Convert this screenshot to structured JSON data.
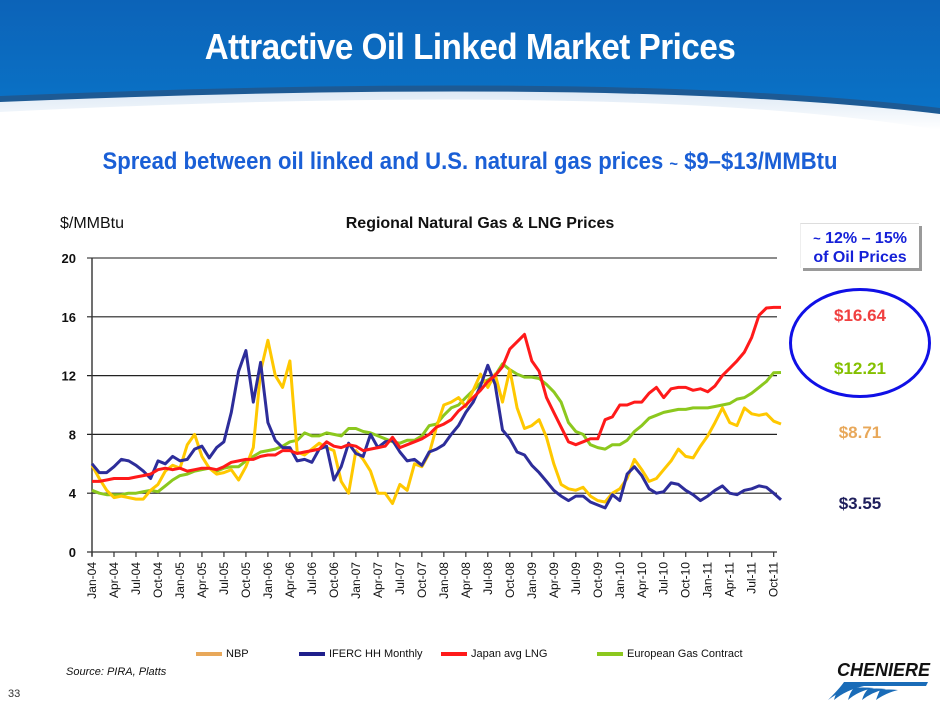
{
  "header": {
    "title": "Attractive Oil Linked Market Prices",
    "subtitle_main": "Spread between oil linked and U.S. natural gas prices ",
    "subtitle_tilde": "~",
    "subtitle_range": " $9–$13/MMBtu"
  },
  "callout": {
    "tilde": "~",
    "line1": " 12% – 15%",
    "line2": "of Oil Prices"
  },
  "end_values": {
    "japan": "$16.64",
    "european": "$12.21",
    "nbp": "$8.71",
    "henry_hub": "$3.55"
  },
  "footer": {
    "source": "Source: PIRA, Platts",
    "page_number": "33",
    "logo_text": "CHENIERE"
  },
  "colors": {
    "banner": "#0a6fc2",
    "nbp": "#e8a85a",
    "nbp_line": "#ffc800",
    "henry_hub": "#1f1f8c",
    "henry_hub_line": "#2d2d9a",
    "japan": "#ff1a1a",
    "japan_label": "#f04040",
    "european": "#8cc81e",
    "european_label": "#84c000",
    "ellipse": "#1010e6",
    "callout_text": "#1520d8",
    "subtitle": "#1a5fd6"
  },
  "chart_data": {
    "type": "line",
    "title": "Regional Natural Gas & LNG Prices",
    "ylabel": "$/MMBtu",
    "xlabel": "",
    "ylim": [
      0,
      20
    ],
    "yticks": [
      "0",
      "4",
      "8",
      "12",
      "16",
      "20"
    ],
    "ytick_values": [
      0,
      4,
      8,
      12,
      16,
      20
    ],
    "grid": true,
    "legend_position": "bottom",
    "x_start": "Jan-04",
    "x_step": "monthly",
    "xtick_labels": [
      "Jan-04",
      "Apr-04",
      "Jul-04",
      "Oct-04",
      "Jan-05",
      "Apr-05",
      "Jul-05",
      "Oct-05",
      "Jan-06",
      "Apr-06",
      "Jul-06",
      "Oct-06",
      "Jan-07",
      "Apr-07",
      "Jul-07",
      "Oct-07",
      "Jan-08",
      "Apr-08",
      "Jul-08",
      "Oct-08",
      "Jan-09",
      "Apr-09",
      "Jul-09",
      "Oct-09",
      "Jan-10",
      "Apr-10",
      "Jul-10",
      "Oct-10",
      "Jan-11",
      "Apr-11",
      "Jul-11",
      "Oct-11"
    ],
    "series": [
      {
        "name": "NBP",
        "values": [
          5.9,
          5.0,
          4.2,
          3.7,
          3.8,
          3.7,
          3.6,
          3.6,
          4.2,
          4.6,
          5.5,
          5.9,
          5.7,
          7.3,
          8.0,
          6.5,
          5.7,
          5.3,
          5.4,
          5.6,
          4.9,
          5.8,
          7.1,
          12.3,
          14.4,
          12.0,
          11.2,
          13.0,
          6.8,
          6.6,
          7.0,
          7.4,
          7.1,
          6.9,
          4.8,
          4.0,
          6.9,
          6.3,
          5.5,
          4.0,
          4.0,
          3.3,
          4.6,
          4.2,
          6.0,
          5.8,
          6.7,
          8.5,
          10.0,
          10.2,
          10.5,
          9.9,
          11.0,
          12.1,
          11.2,
          12.1,
          10.2,
          12.4,
          9.8,
          8.4,
          8.6,
          9.0,
          7.8,
          6.0,
          4.6,
          4.3,
          4.2,
          4.4,
          3.8,
          3.5,
          3.4,
          4.0,
          4.3,
          5.0,
          6.3,
          5.6,
          4.8,
          5.0,
          5.6,
          6.2,
          7.0,
          6.5,
          6.4,
          7.2,
          7.9,
          8.8,
          9.8,
          8.8,
          8.6,
          9.8,
          9.4,
          9.3,
          9.4,
          8.9,
          8.71
        ]
      },
      {
        "name": "IFERC HH Monthly",
        "values": [
          6.0,
          5.4,
          5.4,
          5.8,
          6.3,
          6.2,
          5.9,
          5.5,
          5.0,
          6.2,
          6.0,
          6.5,
          6.2,
          6.3,
          7.0,
          7.2,
          6.4,
          7.1,
          7.5,
          9.5,
          12.3,
          13.7,
          10.2,
          12.9,
          8.8,
          7.6,
          7.1,
          7.1,
          6.2,
          6.3,
          6.1,
          7.0,
          7.2,
          4.9,
          5.8,
          7.4,
          6.7,
          6.5,
          8.0,
          7.1,
          7.5,
          7.6,
          6.8,
          6.2,
          6.3,
          5.9,
          6.8,
          7.0,
          7.3,
          8.0,
          8.6,
          9.5,
          10.2,
          11.3,
          12.7,
          11.4,
          8.3,
          7.7,
          6.8,
          6.6,
          5.9,
          5.4,
          4.8,
          4.2,
          3.8,
          3.5,
          3.8,
          3.8,
          3.4,
          3.2,
          3.0,
          3.9,
          3.5,
          5.3,
          5.8,
          5.2,
          4.3,
          4.0,
          4.1,
          4.7,
          4.6,
          4.2,
          3.9,
          3.5,
          3.8,
          4.2,
          4.5,
          4.0,
          3.9,
          4.2,
          4.3,
          4.5,
          4.4,
          4.0,
          3.55
        ]
      },
      {
        "name": "Japan avg LNG",
        "values": [
          4.8,
          4.8,
          4.9,
          5.0,
          5.0,
          5.0,
          5.1,
          5.2,
          5.3,
          5.6,
          5.7,
          5.6,
          5.7,
          5.5,
          5.6,
          5.7,
          5.7,
          5.6,
          5.8,
          6.1,
          6.2,
          6.3,
          6.3,
          6.5,
          6.6,
          6.6,
          6.9,
          6.9,
          6.7,
          6.8,
          6.9,
          7.0,
          7.5,
          7.2,
          7.1,
          7.3,
          7.2,
          6.9,
          7.0,
          7.1,
          7.2,
          7.8,
          7.1,
          7.3,
          7.5,
          7.7,
          8.0,
          8.5,
          8.7,
          9.0,
          9.6,
          10.0,
          10.5,
          11.0,
          11.6,
          12.0,
          12.6,
          13.8,
          14.3,
          14.8,
          13.0,
          12.3,
          10.5,
          9.5,
          8.5,
          7.5,
          7.3,
          7.5,
          7.7,
          7.7,
          9.0,
          9.2,
          10.0,
          10.0,
          10.2,
          10.2,
          10.8,
          11.2,
          10.5,
          11.1,
          11.2,
          11.2,
          11.0,
          11.1,
          10.9,
          11.3,
          12.0,
          12.5,
          13.0,
          13.6,
          14.6,
          16.1,
          16.6,
          16.64,
          16.64
        ]
      },
      {
        "name": "European Gas Contract",
        "values": [
          4.2,
          4.0,
          3.9,
          3.9,
          3.9,
          4.0,
          4.0,
          4.1,
          4.2,
          4.1,
          4.5,
          4.9,
          5.2,
          5.3,
          5.5,
          5.6,
          5.7,
          5.5,
          5.7,
          5.8,
          5.8,
          6.2,
          6.5,
          6.8,
          6.9,
          7.0,
          7.2,
          7.5,
          7.6,
          8.1,
          7.9,
          7.9,
          8.1,
          8.0,
          7.9,
          8.4,
          8.4,
          8.2,
          8.1,
          7.9,
          7.7,
          7.5,
          7.4,
          7.6,
          7.6,
          7.9,
          8.6,
          8.7,
          9.3,
          9.8,
          10.0,
          10.5,
          11.0,
          11.5,
          11.7,
          12.0,
          12.8,
          12.4,
          12.1,
          11.9,
          11.9,
          11.8,
          11.4,
          10.9,
          10.2,
          8.8,
          8.2,
          8.0,
          7.3,
          7.1,
          7.0,
          7.3,
          7.3,
          7.6,
          8.2,
          8.6,
          9.1,
          9.3,
          9.5,
          9.6,
          9.7,
          9.7,
          9.8,
          9.8,
          9.8,
          9.9,
          10.0,
          10.1,
          10.4,
          10.5,
          10.8,
          11.2,
          11.6,
          12.2,
          12.21
        ]
      }
    ]
  },
  "legend": {
    "nbp": "NBP",
    "henry_hub": "IFERC HH Monthly",
    "japan": "Japan avg LNG",
    "european": "European Gas Contract"
  }
}
